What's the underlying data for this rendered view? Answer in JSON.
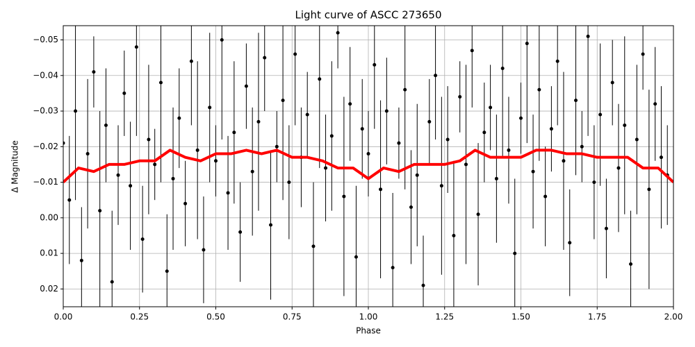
{
  "chart_data": {
    "type": "errorbar",
    "title": "Light curve of ASCC 273650",
    "x_label": "Phase",
    "y_label": "Δ Magnitude",
    "xlim": [
      0,
      2
    ],
    "ylim": [
      -0.054,
      0.025
    ],
    "invert_y": true,
    "grid": true,
    "xticks": [
      {
        "value": 0,
        "label": "0.00"
      },
      {
        "value": 0.25,
        "label": "0.25"
      },
      {
        "value": 0.5,
        "label": "0.50"
      },
      {
        "value": 0.75,
        "label": "0.75"
      },
      {
        "value": 1,
        "label": "1.00"
      },
      {
        "value": 1.25,
        "label": "1.25"
      },
      {
        "value": 1.5,
        "label": "1.50"
      },
      {
        "value": 1.75,
        "label": "1.75"
      },
      {
        "value": 2,
        "label": "2.00"
      }
    ],
    "yticks": [
      {
        "value": -0.05,
        "label": "−0.05"
      },
      {
        "value": -0.04,
        "label": "−0.04"
      },
      {
        "value": -0.03,
        "label": "−0.03"
      },
      {
        "value": -0.02,
        "label": "−0.02"
      },
      {
        "value": -0.01,
        "label": "−0.01"
      },
      {
        "value": 0,
        "label": "0.00"
      },
      {
        "value": 0.01,
        "label": "0.01"
      },
      {
        "value": 0.02,
        "label": "0.02"
      }
    ],
    "points": {
      "color": "#000000",
      "x": [
        0.0,
        0.02,
        0.04,
        0.06,
        0.08,
        0.1,
        0.12,
        0.14,
        0.16,
        0.18,
        0.2,
        0.22,
        0.24,
        0.26,
        0.28,
        0.3,
        0.32,
        0.34,
        0.36,
        0.38,
        0.4,
        0.42,
        0.44,
        0.46,
        0.48,
        0.5,
        0.52,
        0.54,
        0.56,
        0.58,
        0.6,
        0.62,
        0.64,
        0.66,
        0.68,
        0.7,
        0.72,
        0.74,
        0.76,
        0.78,
        0.8,
        0.82,
        0.84,
        0.86,
        0.88,
        0.9,
        0.92,
        0.94,
        0.96,
        0.98,
        1.0,
        1.02,
        1.04,
        1.06,
        1.08,
        1.1,
        1.12,
        1.14,
        1.16,
        1.18,
        1.2,
        1.22,
        1.24,
        1.26,
        1.28,
        1.3,
        1.32,
        1.34,
        1.36,
        1.38,
        1.4,
        1.42,
        1.44,
        1.46,
        1.48,
        1.5,
        1.52,
        1.54,
        1.56,
        1.58,
        1.6,
        1.62,
        1.64,
        1.66,
        1.68,
        1.7,
        1.72,
        1.74,
        1.76,
        1.78,
        1.8,
        1.82,
        1.84,
        1.86,
        1.88,
        1.9,
        1.92,
        1.94,
        1.96,
        1.98
      ],
      "values": [
        -0.021,
        -0.005,
        -0.03,
        0.012,
        -0.018,
        -0.041,
        -0.002,
        -0.026,
        0.018,
        -0.012,
        -0.035,
        -0.009,
        -0.048,
        0.006,
        -0.022,
        -0.015,
        -0.038,
        0.015,
        -0.011,
        -0.028,
        -0.004,
        -0.044,
        -0.019,
        0.009,
        -0.031,
        -0.016,
        -0.05,
        -0.007,
        -0.024,
        0.004,
        -0.037,
        -0.013,
        -0.027,
        -0.045,
        0.002,
        -0.02,
        -0.033,
        -0.01,
        -0.046,
        -0.017,
        -0.029,
        0.008,
        -0.039,
        -0.014,
        -0.023,
        -0.052,
        -0.006,
        -0.032,
        0.011,
        -0.025,
        -0.018,
        -0.043,
        -0.008,
        -0.03,
        0.014,
        -0.021,
        -0.036,
        -0.003,
        -0.012,
        0.019,
        -0.027,
        -0.04,
        -0.009,
        -0.022,
        0.005,
        -0.034,
        -0.015,
        -0.047,
        -0.001,
        -0.024,
        -0.031,
        -0.011,
        -0.042,
        -0.019,
        0.01,
        -0.028,
        -0.049,
        -0.013,
        -0.036,
        -0.006,
        -0.025,
        -0.044,
        -0.016,
        0.007,
        -0.033,
        -0.02,
        -0.051,
        -0.01,
        -0.029,
        0.003,
        -0.038,
        -0.014,
        -0.026,
        0.013,
        -0.022,
        -0.046,
        -0.008,
        -0.032,
        -0.017,
        -0.012
      ],
      "errors": [
        0.012,
        0.018,
        0.025,
        0.015,
        0.021,
        0.01,
        0.028,
        0.016,
        0.02,
        0.014,
        0.012,
        0.018,
        0.025,
        0.015,
        0.021,
        0.01,
        0.028,
        0.016,
        0.02,
        0.014,
        0.012,
        0.018,
        0.025,
        0.015,
        0.021,
        0.01,
        0.028,
        0.016,
        0.02,
        0.014,
        0.012,
        0.018,
        0.025,
        0.015,
        0.021,
        0.01,
        0.028,
        0.016,
        0.02,
        0.014,
        0.012,
        0.018,
        0.025,
        0.015,
        0.021,
        0.01,
        0.028,
        0.016,
        0.02,
        0.014,
        0.012,
        0.018,
        0.025,
        0.015,
        0.021,
        0.01,
        0.028,
        0.016,
        0.02,
        0.014,
        0.012,
        0.018,
        0.025,
        0.015,
        0.021,
        0.01,
        0.028,
        0.016,
        0.02,
        0.014,
        0.012,
        0.018,
        0.025,
        0.015,
        0.021,
        0.01,
        0.028,
        0.016,
        0.02,
        0.014,
        0.012,
        0.018,
        0.025,
        0.015,
        0.021,
        0.01,
        0.028,
        0.016,
        0.02,
        0.014,
        0.012,
        0.018,
        0.025,
        0.015,
        0.021,
        0.01,
        0.028,
        0.016,
        0.02,
        0.014
      ]
    },
    "trend": {
      "color": "#ff0000",
      "x": [
        0,
        0.05,
        0.1,
        0.15,
        0.2,
        0.25,
        0.3,
        0.35,
        0.4,
        0.45,
        0.5,
        0.55,
        0.6,
        0.65,
        0.7,
        0.75,
        0.8,
        0.85,
        0.9,
        0.95,
        1,
        1.05,
        1.1,
        1.15,
        1.2,
        1.25,
        1.3,
        1.35,
        1.4,
        1.45,
        1.5,
        1.55,
        1.6,
        1.65,
        1.7,
        1.75,
        1.8,
        1.85,
        1.9,
        1.95,
        2
      ],
      "values": [
        -0.01,
        -0.014,
        -0.013,
        -0.015,
        -0.015,
        -0.016,
        -0.016,
        -0.019,
        -0.017,
        -0.016,
        -0.018,
        -0.018,
        -0.019,
        -0.018,
        -0.019,
        -0.017,
        -0.017,
        -0.016,
        -0.014,
        -0.014,
        -0.011,
        -0.014,
        -0.013,
        -0.015,
        -0.015,
        -0.015,
        -0.016,
        -0.019,
        -0.017,
        -0.017,
        -0.017,
        -0.019,
        -0.019,
        -0.018,
        -0.018,
        -0.017,
        -0.017,
        -0.017,
        -0.014,
        -0.014,
        -0.01
      ]
    }
  }
}
